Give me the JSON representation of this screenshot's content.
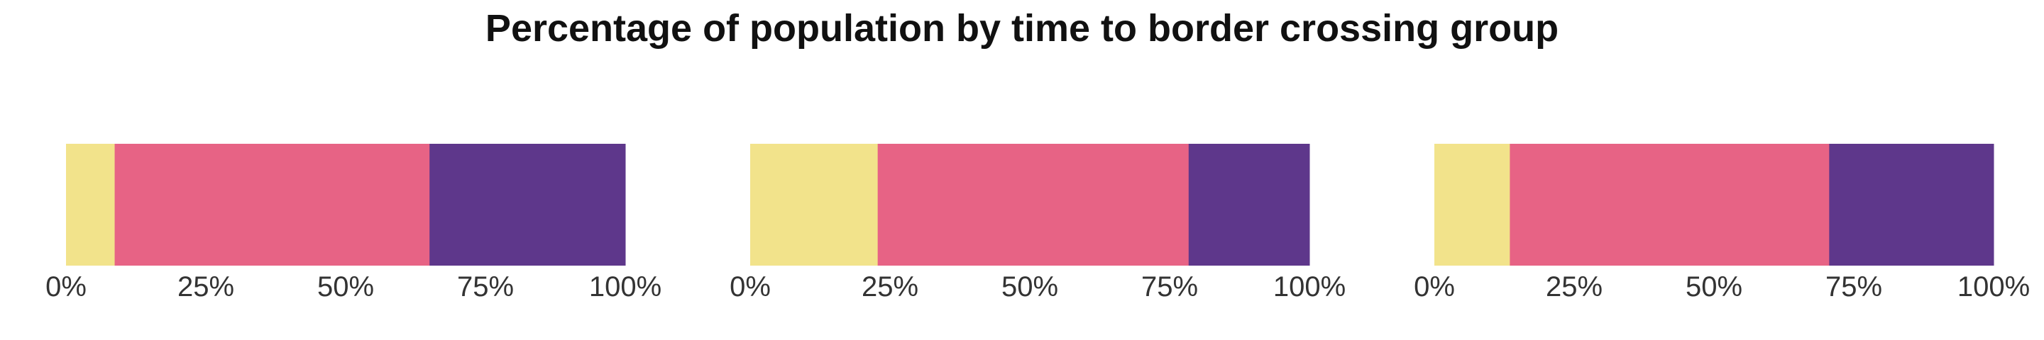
{
  "chart_data": {
    "type": "bar",
    "orientation": "horizontal",
    "stacked": true,
    "normalized": true,
    "title": "Percentage of population by time to border crossing group",
    "xlabel": "",
    "ylabel": "",
    "xlim": [
      0,
      100
    ],
    "x_ticks": [
      "0%",
      "25%",
      "50%",
      "75%",
      "100%"
    ],
    "grid": false,
    "legend": "none",
    "colors": [
      "#f2e38b",
      "#e76385",
      "#5e378b"
    ],
    "panels": [
      {
        "segments": [
          8.7,
          56.3,
          35.0
        ]
      },
      {
        "segments": [
          22.8,
          55.6,
          21.6
        ]
      },
      {
        "segments": [
          13.5,
          57.1,
          29.4
        ]
      }
    ]
  }
}
